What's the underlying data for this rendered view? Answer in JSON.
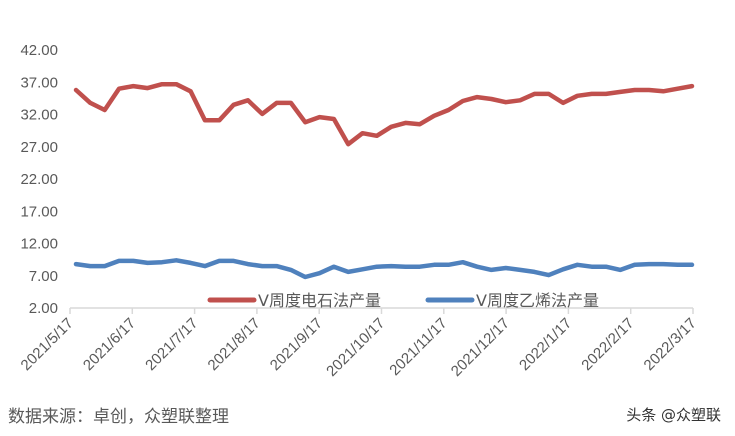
{
  "chart_data": {
    "type": "line",
    "title": "",
    "xlabel": "",
    "ylabel": "",
    "ylim": [
      2,
      42
    ],
    "yticks": [
      "2.00",
      "7.00",
      "12.00",
      "17.00",
      "22.00",
      "27.00",
      "32.00",
      "37.00",
      "42.00"
    ],
    "xticks": [
      "2021/5/17",
      "2021/6/17",
      "2021/7/17",
      "2021/8/17",
      "2021/9/17",
      "2021/10/17",
      "2021/11/17",
      "2021/12/17",
      "2022/1/17",
      "2022/2/17",
      "2022/3/17"
    ],
    "grid": false,
    "legend_position": "bottom-inside",
    "frequency": "weekly",
    "series": [
      {
        "name": "V周度电石法产量",
        "color": "#C0504D",
        "values": [
          35.8,
          33.8,
          32.7,
          36.0,
          36.4,
          36.1,
          36.7,
          36.7,
          35.6,
          31.1,
          31.1,
          33.5,
          34.2,
          32.1,
          33.8,
          33.8,
          30.8,
          31.6,
          31.3,
          27.4,
          29.1,
          28.7,
          30.1,
          30.7,
          30.5,
          31.8,
          32.7,
          34.1,
          34.7,
          34.4,
          33.9,
          34.2,
          35.2,
          35.2,
          33.8,
          34.9,
          35.2,
          35.2,
          35.5,
          35.8,
          35.8,
          35.6,
          36.0,
          36.4
        ]
      },
      {
        "name": "V周度乙烯法产量",
        "color": "#4F81BD",
        "values": [
          8.8,
          8.5,
          8.5,
          9.3,
          9.3,
          9.0,
          9.1,
          9.4,
          9.0,
          8.5,
          9.3,
          9.3,
          8.8,
          8.5,
          8.5,
          7.9,
          6.8,
          7.4,
          8.4,
          7.6,
          8.0,
          8.4,
          8.5,
          8.4,
          8.4,
          8.7,
          8.7,
          9.1,
          8.4,
          7.9,
          8.2,
          7.9,
          7.6,
          7.1,
          8.0,
          8.7,
          8.4,
          8.4,
          7.9,
          8.7,
          8.8,
          8.8,
          8.7,
          8.7
        ]
      }
    ]
  },
  "footer": {
    "source": "数据来源：卓创，众塑联整理",
    "watermark": "头条 @众塑联"
  }
}
